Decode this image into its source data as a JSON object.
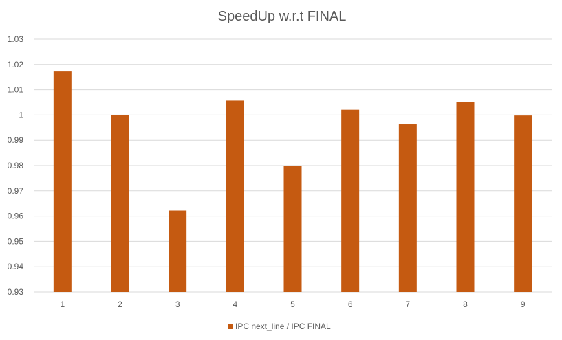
{
  "chart_data": {
    "type": "bar",
    "title": "SpeedUp w.r.t FINAL",
    "xlabel": "",
    "ylabel": "",
    "categories": [
      "1",
      "2",
      "3",
      "4",
      "5",
      "6",
      "7",
      "8",
      "9"
    ],
    "series": [
      {
        "name": "IPC next_line / IPC FINAL",
        "color": "#C55A11",
        "values": [
          1.0172,
          1.0,
          0.9622,
          1.0057,
          0.98,
          1.0021,
          0.9963,
          1.0052,
          0.9998
        ]
      }
    ],
    "ylim": [
      0.93,
      1.03
    ],
    "yticks": [
      "0.93",
      "0.94",
      "0.95",
      "0.96",
      "0.97",
      "0.98",
      "0.99",
      "1",
      "1.01",
      "1.02",
      "1.03"
    ],
    "grid": true,
    "legend_position": "bottom",
    "colors": {
      "bar": "#C55A11",
      "grid": "#D9D9D9",
      "text": "#595959",
      "title": "#595959"
    }
  }
}
